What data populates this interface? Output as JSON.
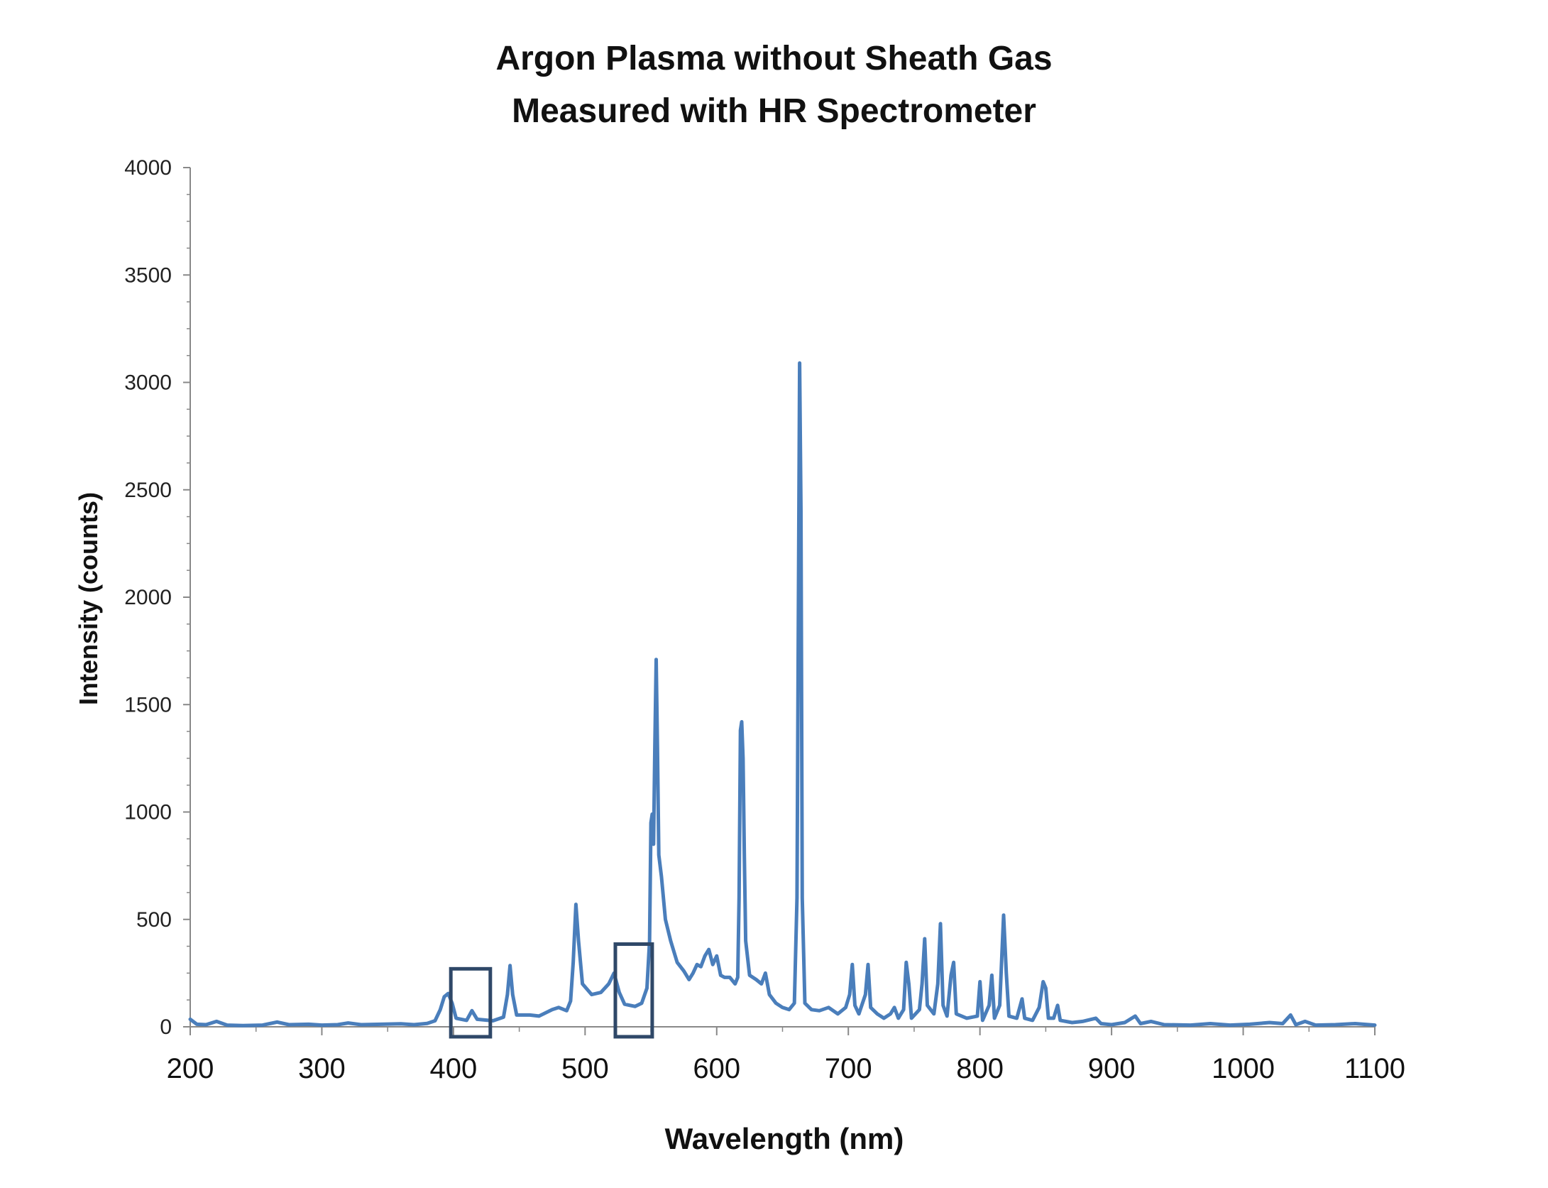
{
  "chart_data": {
    "type": "line",
    "title": "Argon Plasma without Sheath Gas",
    "subtitle": "Measured with HR Spectrometer",
    "xlabel": "Wavelength (nm)",
    "ylabel": "Intensity (counts)",
    "xlim": [
      200,
      1100
    ],
    "ylim": [
      0,
      4000
    ],
    "x_ticks": [
      "200",
      "300",
      "400",
      "500",
      "600",
      "700",
      "800",
      "900",
      "1000",
      "1100"
    ],
    "y_ticks": [
      "0",
      "500",
      "1000",
      "1500",
      "2000",
      "2500",
      "3000",
      "3500",
      "4000"
    ],
    "grid": false,
    "legend": "none",
    "series_color": "#4a7ebb",
    "highlight_box_color": "#2f4868",
    "series": [
      {
        "points": [
          [
            200,
            35
          ],
          [
            205,
            12
          ],
          [
            212,
            10
          ],
          [
            220,
            25
          ],
          [
            228,
            8
          ],
          [
            240,
            6
          ],
          [
            255,
            8
          ],
          [
            266,
            22
          ],
          [
            275,
            10
          ],
          [
            290,
            12
          ],
          [
            300,
            8
          ],
          [
            312,
            10
          ],
          [
            320,
            18
          ],
          [
            330,
            10
          ],
          [
            345,
            12
          ],
          [
            360,
            14
          ],
          [
            370,
            10
          ],
          [
            380,
            16
          ],
          [
            386,
            28
          ],
          [
            390,
            80
          ],
          [
            393,
            140
          ],
          [
            396,
            155
          ],
          [
            399,
            110
          ],
          [
            402,
            40
          ],
          [
            410,
            30
          ],
          [
            414,
            75
          ],
          [
            418,
            35
          ],
          [
            430,
            28
          ],
          [
            438,
            45
          ],
          [
            441,
            150
          ],
          [
            443,
            285
          ],
          [
            445,
            150
          ],
          [
            448,
            55
          ],
          [
            458,
            55
          ],
          [
            465,
            50
          ],
          [
            475,
            80
          ],
          [
            480,
            90
          ],
          [
            486,
            75
          ],
          [
            489,
            120
          ],
          [
            491,
            300
          ],
          [
            493,
            570
          ],
          [
            495,
            400
          ],
          [
            498,
            200
          ],
          [
            505,
            150
          ],
          [
            512,
            160
          ],
          [
            518,
            200
          ],
          [
            522,
            250
          ],
          [
            526,
            160
          ],
          [
            530,
            105
          ],
          [
            538,
            95
          ],
          [
            543,
            110
          ],
          [
            547,
            180
          ],
          [
            549,
            400
          ],
          [
            550,
            950
          ],
          [
            551,
            990
          ],
          [
            552,
            850
          ],
          [
            553,
            1300
          ],
          [
            554,
            1710
          ],
          [
            555,
            1300
          ],
          [
            556,
            800
          ],
          [
            558,
            700
          ],
          [
            561,
            500
          ],
          [
            565,
            400
          ],
          [
            570,
            300
          ],
          [
            575,
            260
          ],
          [
            579,
            220
          ],
          [
            582,
            250
          ],
          [
            585,
            290
          ],
          [
            588,
            280
          ],
          [
            591,
            330
          ],
          [
            594,
            360
          ],
          [
            597,
            290
          ],
          [
            600,
            330
          ],
          [
            603,
            240
          ],
          [
            606,
            230
          ],
          [
            610,
            230
          ],
          [
            614,
            200
          ],
          [
            616,
            230
          ],
          [
            617,
            600
          ],
          [
            618,
            1380
          ],
          [
            619,
            1420
          ],
          [
            620,
            1250
          ],
          [
            621,
            800
          ],
          [
            622,
            400
          ],
          [
            625,
            240
          ],
          [
            630,
            220
          ],
          [
            634,
            200
          ],
          [
            637,
            250
          ],
          [
            640,
            150
          ],
          [
            645,
            110
          ],
          [
            650,
            90
          ],
          [
            655,
            80
          ],
          [
            659,
            110
          ],
          [
            661,
            600
          ],
          [
            662,
            1900
          ],
          [
            663,
            3090
          ],
          [
            664,
            2400
          ],
          [
            665,
            600
          ],
          [
            667,
            110
          ],
          [
            672,
            80
          ],
          [
            678,
            75
          ],
          [
            685,
            90
          ],
          [
            692,
            60
          ],
          [
            698,
            90
          ],
          [
            701,
            150
          ],
          [
            703,
            290
          ],
          [
            705,
            100
          ],
          [
            708,
            60
          ],
          [
            713,
            150
          ],
          [
            715,
            290
          ],
          [
            717,
            90
          ],
          [
            722,
            60
          ],
          [
            727,
            40
          ],
          [
            732,
            60
          ],
          [
            735,
            90
          ],
          [
            738,
            40
          ],
          [
            742,
            80
          ],
          [
            744,
            300
          ],
          [
            746,
            200
          ],
          [
            748,
            40
          ],
          [
            754,
            80
          ],
          [
            756,
            200
          ],
          [
            758,
            410
          ],
          [
            760,
            100
          ],
          [
            765,
            60
          ],
          [
            768,
            200
          ],
          [
            770,
            480
          ],
          [
            772,
            100
          ],
          [
            775,
            50
          ],
          [
            778,
            240
          ],
          [
            780,
            300
          ],
          [
            782,
            60
          ],
          [
            790,
            40
          ],
          [
            798,
            50
          ],
          [
            800,
            210
          ],
          [
            802,
            30
          ],
          [
            807,
            100
          ],
          [
            809,
            240
          ],
          [
            811,
            40
          ],
          [
            815,
            100
          ],
          [
            818,
            520
          ],
          [
            820,
            250
          ],
          [
            822,
            50
          ],
          [
            828,
            40
          ],
          [
            832,
            130
          ],
          [
            834,
            40
          ],
          [
            840,
            30
          ],
          [
            845,
            90
          ],
          [
            848,
            210
          ],
          [
            850,
            180
          ],
          [
            852,
            40
          ],
          [
            856,
            40
          ],
          [
            859,
            100
          ],
          [
            861,
            30
          ],
          [
            870,
            20
          ],
          [
            878,
            25
          ],
          [
            888,
            40
          ],
          [
            892,
            15
          ],
          [
            900,
            10
          ],
          [
            910,
            20
          ],
          [
            918,
            50
          ],
          [
            922,
            15
          ],
          [
            930,
            25
          ],
          [
            940,
            10
          ],
          [
            960,
            8
          ],
          [
            975,
            15
          ],
          [
            990,
            8
          ],
          [
            1005,
            12
          ],
          [
            1020,
            20
          ],
          [
            1030,
            15
          ],
          [
            1036,
            55
          ],
          [
            1040,
            10
          ],
          [
            1047,
            25
          ],
          [
            1055,
            8
          ],
          [
            1070,
            10
          ],
          [
            1085,
            15
          ],
          [
            1100,
            8
          ]
        ]
      }
    ],
    "highlight_boxes": [
      {
        "x": [
          398,
          428
        ],
        "y": [
          0,
          270
        ]
      },
      {
        "x": [
          523,
          551
        ],
        "y": [
          0,
          385
        ]
      }
    ]
  }
}
